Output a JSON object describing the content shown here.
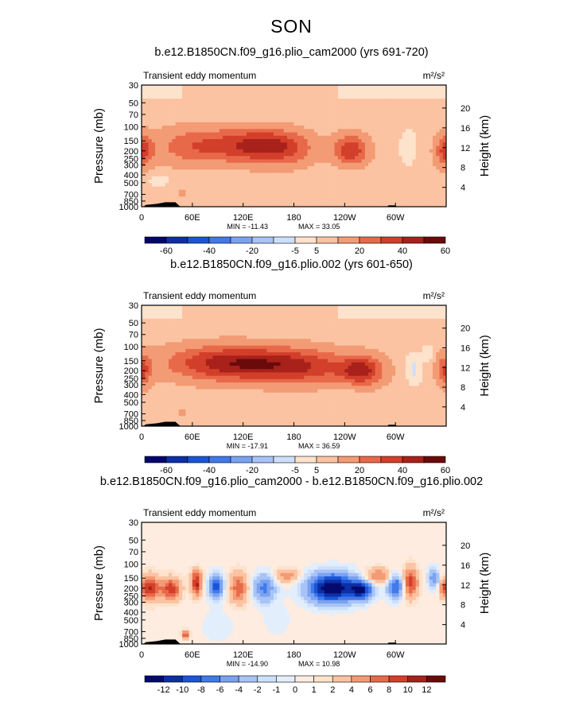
{
  "figure_title": "SON",
  "chart_data": [
    {
      "type": "heatmap",
      "title": "b.e12.B1850CN.f09_g16.plio_cam2000 (yrs 691-720)",
      "subtitle_left": "Transient eddy momentum",
      "units": "m²/s²",
      "ylabel": "Pressure (mb)",
      "ylabel_right": "Height (km)",
      "x_ticks": [
        "0",
        "60E",
        "120E",
        "180",
        "120W",
        "60W"
      ],
      "y_ticks": [
        "30",
        "50",
        "70",
        "100",
        "150",
        "200",
        "250",
        "300",
        "400",
        "500",
        "700",
        "850",
        "1000"
      ],
      "height_ticks": [
        "4",
        "8",
        "12",
        "16",
        "20"
      ],
      "min_label": "MIN = -11.43",
      "max_label": "MAX = 33.05",
      "colorbar_labels": [
        "-60",
        "-40",
        "-20",
        "-5",
        "5",
        "20",
        "40",
        "60"
      ],
      "background_level": "5",
      "blobs": [
        {
          "lon": 0,
          "p": 200,
          "value": 30,
          "lon_w": 9,
          "p_w": 0.32
        },
        {
          "lon": 65,
          "p": 175,
          "value": 22,
          "lon_w": 35,
          "p_w": 0.38
        },
        {
          "lon": 135,
          "p": 170,
          "value": 32,
          "lon_w": 32,
          "p_w": 0.33
        },
        {
          "lon": 170,
          "p": 190,
          "value": 18,
          "lon_w": 25,
          "p_w": 0.35
        },
        {
          "lon": 247,
          "p": 200,
          "value": 33,
          "lon_w": 14,
          "p_w": 0.32
        },
        {
          "lon": 360,
          "p": 200,
          "value": 30,
          "lon_w": 9,
          "p_w": 0.32
        },
        {
          "lon": 315,
          "p": 180,
          "value": -9,
          "lon_w": 5,
          "p_w": 0.25
        },
        {
          "lon": 48,
          "p": 700,
          "value": 8,
          "lon_w": 4,
          "p_w": 0.1
        },
        {
          "lon": 240,
          "p": 340,
          "value": -3,
          "lon_w": 15,
          "p_w": 0.15
        },
        {
          "lon": 20,
          "p": 450,
          "value": -3,
          "lon_w": 12,
          "p_w": 0.15
        }
      ]
    },
    {
      "type": "heatmap",
      "title": "b.e12.B1850CN.f09_g16.plio.002 (yrs 601-650)",
      "subtitle_left": "Transient eddy momentum",
      "units": "m²/s²",
      "ylabel": "Pressure (mb)",
      "ylabel_right": "Height (km)",
      "x_ticks": [
        "0",
        "60E",
        "120E",
        "180",
        "120W",
        "60W"
      ],
      "y_ticks": [
        "30",
        "50",
        "70",
        "100",
        "150",
        "200",
        "250",
        "300",
        "400",
        "500",
        "700",
        "850",
        "1000"
      ],
      "height_ticks": [
        "4",
        "8",
        "12",
        "16",
        "20"
      ],
      "min_label": "MIN = -17.91",
      "max_label": "MAX = 36.59",
      "colorbar_labels": [
        "-60",
        "-40",
        "-20",
        "-5",
        "5",
        "20",
        "40",
        "60"
      ],
      "background_level": "5",
      "blobs": [
        {
          "lon": 0,
          "p": 200,
          "value": 28,
          "lon_w": 8,
          "p_w": 0.32
        },
        {
          "lon": 80,
          "p": 160,
          "value": 26,
          "lon_w": 42,
          "p_w": 0.36
        },
        {
          "lon": 140,
          "p": 165,
          "value": 32,
          "lon_w": 40,
          "p_w": 0.34
        },
        {
          "lon": 200,
          "p": 180,
          "value": 24,
          "lon_w": 35,
          "p_w": 0.36
        },
        {
          "lon": 260,
          "p": 200,
          "value": 36,
          "lon_w": 18,
          "p_w": 0.3
        },
        {
          "lon": 360,
          "p": 200,
          "value": 28,
          "lon_w": 8,
          "p_w": 0.32
        },
        {
          "lon": 322,
          "p": 190,
          "value": -15,
          "lon_w": 5,
          "p_w": 0.22
        },
        {
          "lon": 338,
          "p": 120,
          "value": -6,
          "lon_w": 4,
          "p_w": 0.14
        },
        {
          "lon": 48,
          "p": 700,
          "value": 8,
          "lon_w": 4,
          "p_w": 0.1
        },
        {
          "lon": 240,
          "p": 350,
          "value": -3,
          "lon_w": 15,
          "p_w": 0.15
        }
      ]
    },
    {
      "type": "heatmap",
      "title": "b.e12.B1850CN.f09_g16.plio_cam2000 - b.e12.B1850CN.f09_g16.plio.002",
      "subtitle_left": "Transient eddy momentum",
      "units": "m²/s²",
      "ylabel": "Pressure (mb)",
      "ylabel_right": "Height (km)",
      "x_ticks": [
        "0",
        "60E",
        "120E",
        "180",
        "120W",
        "60W"
      ],
      "y_ticks": [
        "30",
        "50",
        "70",
        "100",
        "150",
        "200",
        "250",
        "300",
        "400",
        "500",
        "700",
        "850",
        "1000"
      ],
      "height_ticks": [
        "4",
        "8",
        "12",
        "16",
        "20"
      ],
      "min_label": "MIN = -14.90",
      "max_label": "MAX = 10.98",
      "colorbar_labels": [
        "-12",
        "-10",
        "-8",
        "-6",
        "-4",
        "-2",
        "-1",
        "0",
        "1",
        "2",
        "4",
        "6",
        "8",
        "10",
        "12"
      ],
      "background_level": "0",
      "blobs": [
        {
          "lon": 10,
          "p": 200,
          "value": 10,
          "lon_w": 8,
          "p_w": 0.25
        },
        {
          "lon": 35,
          "p": 205,
          "value": 9,
          "lon_w": 8,
          "p_w": 0.22
        },
        {
          "lon": 65,
          "p": 190,
          "value": 9,
          "lon_w": 4,
          "p_w": 0.2
        },
        {
          "lon": 65,
          "p": 140,
          "value": 5,
          "lon_w": 5,
          "p_w": 0.15
        },
        {
          "lon": 88,
          "p": 190,
          "value": -10,
          "lon_w": 6,
          "p_w": 0.25
        },
        {
          "lon": 115,
          "p": 200,
          "value": 7,
          "lon_w": 8,
          "p_w": 0.3
        },
        {
          "lon": 145,
          "p": 200,
          "value": -7,
          "lon_w": 10,
          "p_w": 0.28
        },
        {
          "lon": 172,
          "p": 140,
          "value": 5,
          "lon_w": 10,
          "p_w": 0.15
        },
        {
          "lon": 225,
          "p": 200,
          "value": -15,
          "lon_w": 20,
          "p_w": 0.3
        },
        {
          "lon": 260,
          "p": 210,
          "value": -11,
          "lon_w": 9,
          "p_w": 0.2
        },
        {
          "lon": 280,
          "p": 140,
          "value": 6,
          "lon_w": 12,
          "p_w": 0.15
        },
        {
          "lon": 300,
          "p": 190,
          "value": -9,
          "lon_w": 7,
          "p_w": 0.25
        },
        {
          "lon": 318,
          "p": 170,
          "value": 9,
          "lon_w": 6,
          "p_w": 0.3
        },
        {
          "lon": 345,
          "p": 150,
          "value": -6,
          "lon_w": 5,
          "p_w": 0.2
        },
        {
          "lon": 358,
          "p": 200,
          "value": 8,
          "lon_w": 4,
          "p_w": 0.2
        },
        {
          "lon": 52,
          "p": 760,
          "value": 9,
          "lon_w": 3,
          "p_w": 0.08
        },
        {
          "lon": 160,
          "p": 500,
          "value": -1.5,
          "lon_w": 10,
          "p_w": 0.3
        },
        {
          "lon": 90,
          "p": 600,
          "value": -1.5,
          "lon_w": 12,
          "p_w": 0.3
        }
      ]
    }
  ]
}
